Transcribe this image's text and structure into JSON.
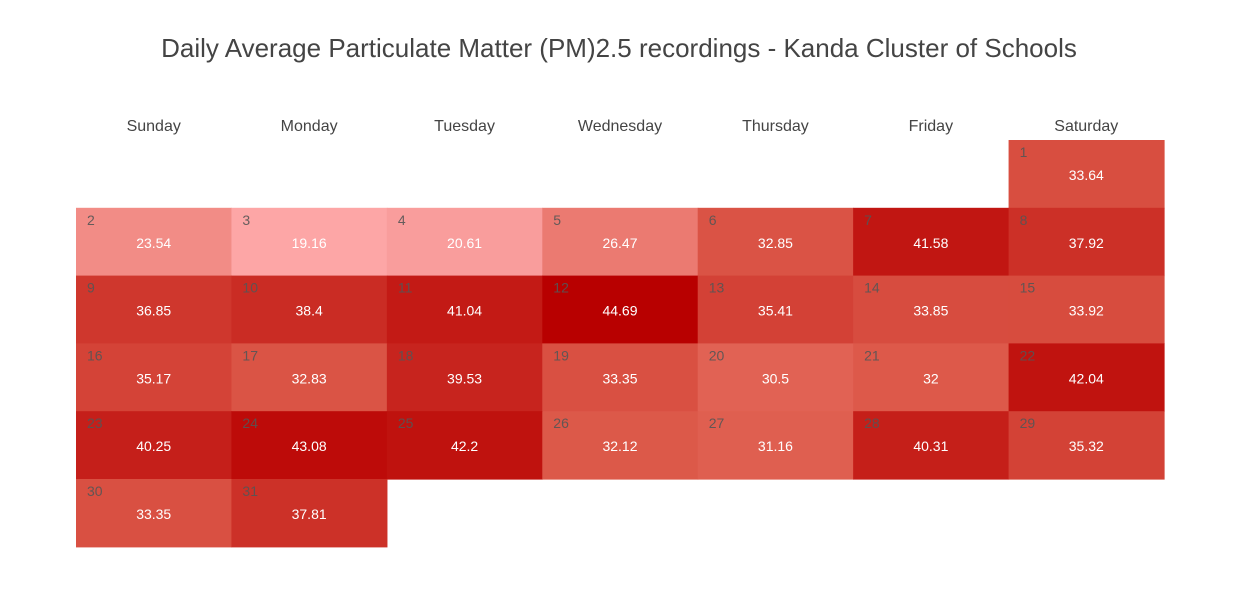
{
  "chart_data": {
    "type": "heatmap",
    "title": "Daily Average Particulate Matter (PM)2.5 recordings - Kanda Cluster of Schools",
    "weekdays": [
      "Sunday",
      "Monday",
      "Tuesday",
      "Wednesday",
      "Thursday",
      "Friday",
      "Saturday"
    ],
    "first_day_weekday_index": 6,
    "days": [
      1,
      2,
      3,
      4,
      5,
      6,
      7,
      8,
      9,
      10,
      11,
      12,
      13,
      14,
      15,
      16,
      17,
      18,
      19,
      20,
      21,
      22,
      23,
      24,
      25,
      26,
      27,
      28,
      29,
      30,
      31
    ],
    "values": [
      "33.64",
      "23.54",
      "19.16",
      "20.61",
      "26.47",
      "32.85",
      "41.58",
      "37.92",
      "36.85",
      "38.4",
      "41.04",
      "44.69",
      "35.41",
      "33.85",
      "33.92",
      "35.17",
      "32.83",
      "39.53",
      "33.35",
      "30.5",
      "32",
      "42.04",
      "40.25",
      "43.08",
      "42.2",
      "32.12",
      "31.16",
      "40.31",
      "35.32",
      "33.35",
      "37.81"
    ],
    "color_scale": {
      "low": "#fda6a6",
      "mid": "#dd5a4a",
      "high": "#b80000",
      "min": 19.16,
      "max": 44.69
    },
    "legend": "none"
  }
}
